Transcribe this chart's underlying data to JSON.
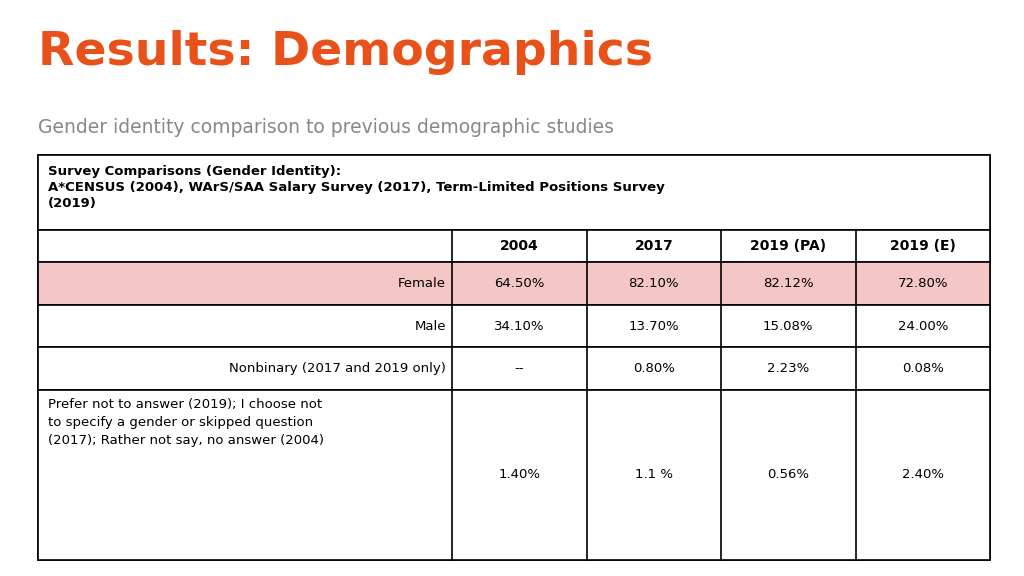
{
  "title": "Results: Demographics",
  "title_color": "#E8521A",
  "subtitle": "Gender identity comparison to previous demographic studies",
  "subtitle_color": "#888888",
  "background_color": "#ffffff",
  "table_header_line1": "Survey Comparisons (Gender Identity):",
  "table_header_line2": "A*CENSUS (2004), WArS/SAA Salary Survey (2017), Term-Limited Positions Survey",
  "table_header_line3": "(2019)",
  "col_headers": [
    "",
    "2004",
    "2017",
    "2019 (PA)",
    "2019 (E)"
  ],
  "rows": [
    {
      "label": "Female",
      "values": [
        "64.50%",
        "82.10%",
        "82.12%",
        "72.80%"
      ],
      "highlight": true,
      "highlight_color": "#F5C6C6",
      "label_align": "right"
    },
    {
      "label": "Male",
      "values": [
        "34.10%",
        "13.70%",
        "15.08%",
        "24.00%"
      ],
      "highlight": false,
      "highlight_color": "#ffffff",
      "label_align": "right"
    },
    {
      "label": "Nonbinary (2017 and 2019 only)",
      "values": [
        "--",
        "0.80%",
        "2.23%",
        "0.08%"
      ],
      "highlight": false,
      "highlight_color": "#ffffff",
      "label_align": "right"
    },
    {
      "label": "Prefer not to answer (2019); I choose not\nto specify a gender or skipped question\n(2017); Rather not say, no answer (2004)",
      "values": [
        "1.40%",
        "1.1 %",
        "0.56%",
        "2.40%"
      ],
      "highlight": false,
      "highlight_color": "#ffffff",
      "label_align": "left"
    }
  ],
  "table_border_color": "#000000",
  "title_font_size": 34,
  "subtitle_font_size": 13.5,
  "cell_font_size": 9.5,
  "header_bold_font_size": 9.5
}
